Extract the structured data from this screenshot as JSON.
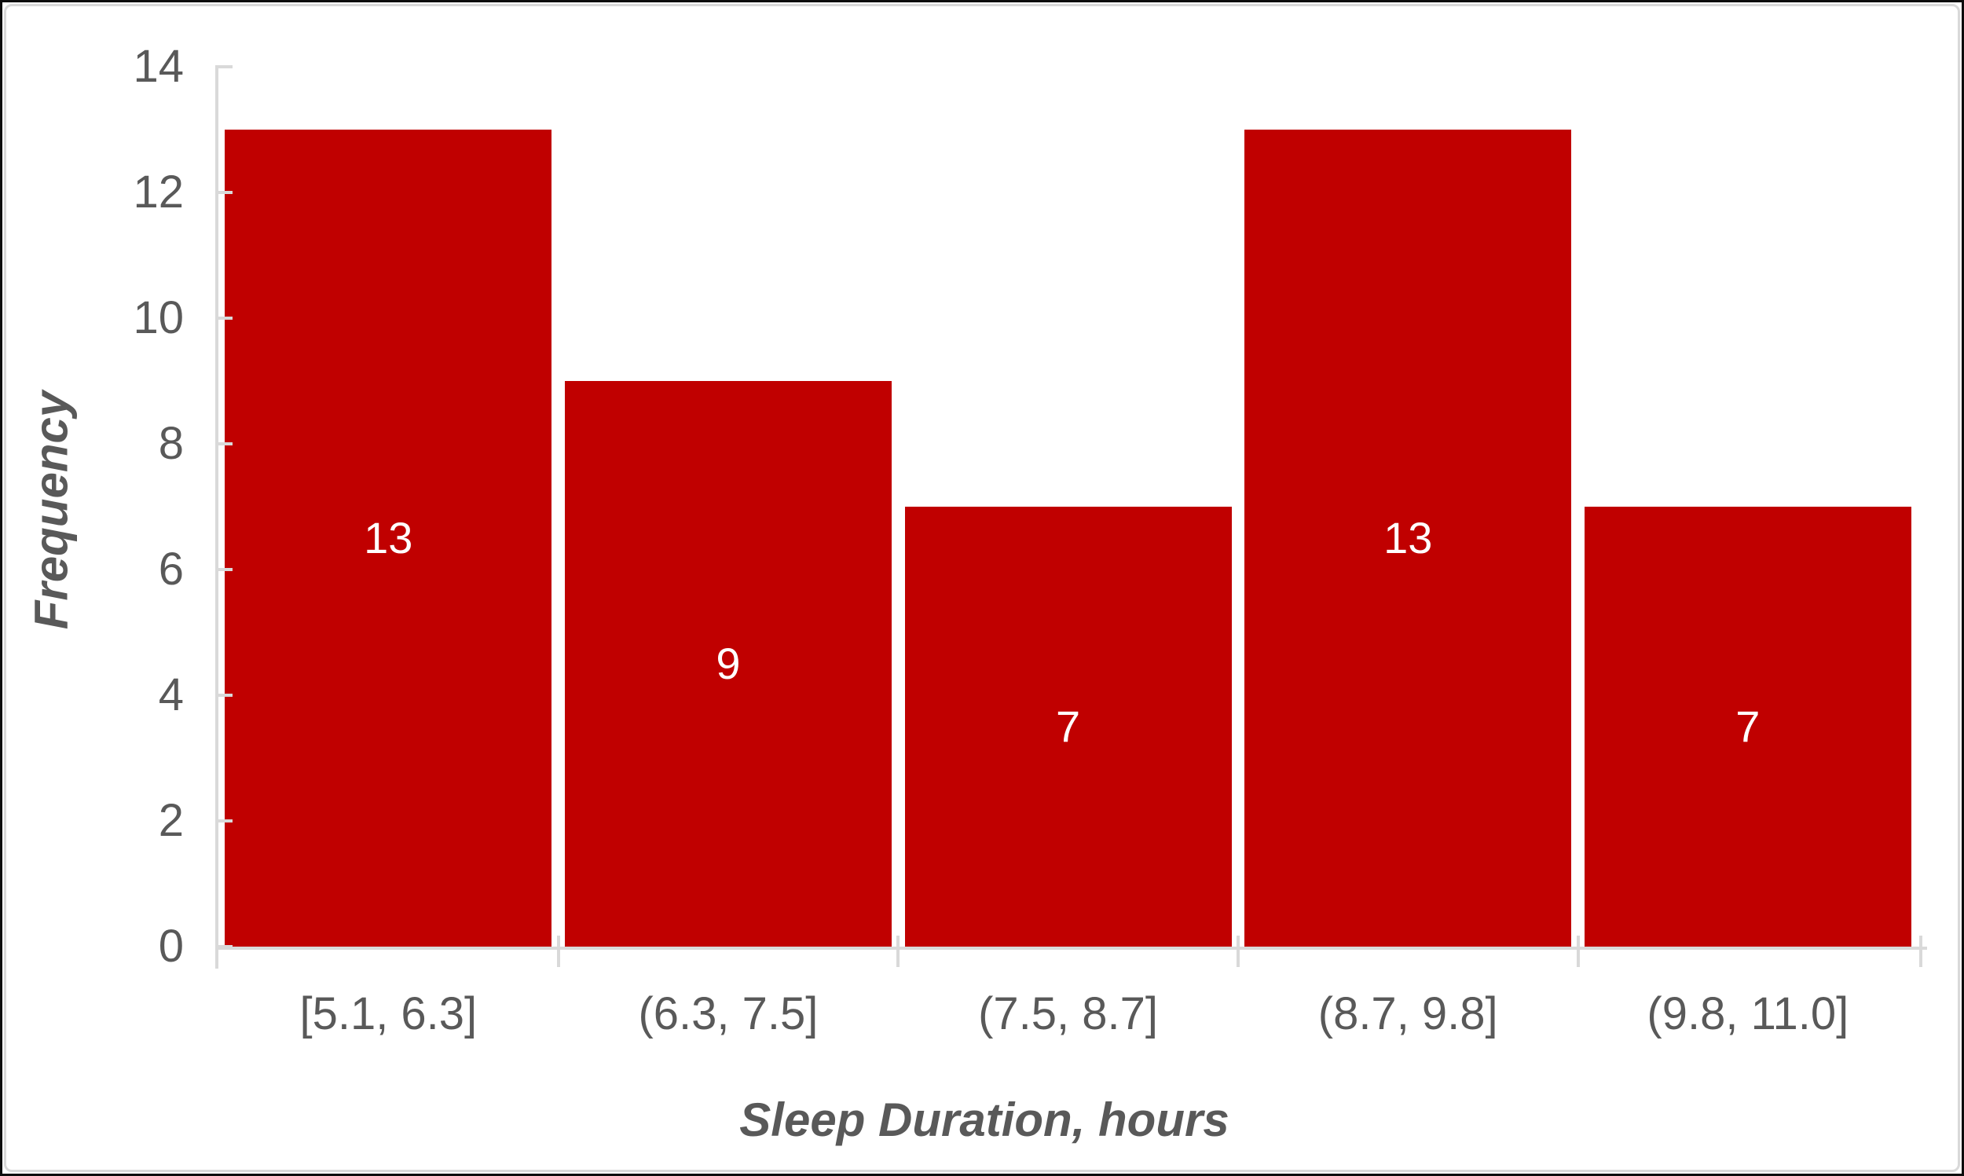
{
  "chart_data": {
    "type": "bar",
    "title": "",
    "categories": [
      "[5.1, 6.3]",
      "(6.3, 7.5]",
      "(7.5, 8.7]",
      "(8.7, 9.8]",
      "(9.8, 11.0]"
    ],
    "values": [
      13,
      9,
      7,
      13,
      7
    ],
    "data_labels": [
      "13",
      "9",
      "7",
      "13",
      "7"
    ],
    "xlabel": "Sleep Duration, hours",
    "ylabel": "Frequency",
    "ylim": [
      0,
      14
    ],
    "y_tick_step": 2,
    "y_ticks": [
      "0",
      "2",
      "4",
      "6",
      "8",
      "10",
      "12",
      "14"
    ],
    "grid": false,
    "legend_position": "none",
    "bar_color": "#C00000",
    "data_label_color": "#FFFFFF",
    "axis_line_color": "#D9D9D9",
    "text_color": "#595959"
  }
}
